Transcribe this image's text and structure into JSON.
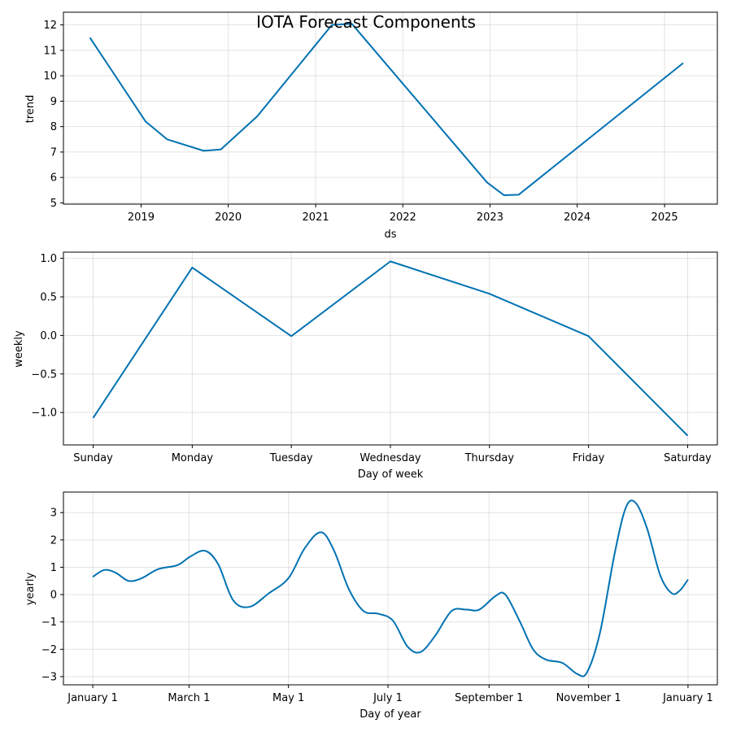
{
  "figure": {
    "title": "IOTA Forecast Components"
  },
  "colors": {
    "line": "#0072B2",
    "grid": "#b0b0b0",
    "frame": "#000000"
  },
  "chart_data": [
    {
      "id": "trend",
      "type": "line",
      "title": "",
      "xlabel": "ds",
      "ylabel": "trend",
      "x_scale": "date",
      "xlim": [
        "2018-02-10",
        "2025-08-10"
      ],
      "ylim": [
        4.95,
        12.5
      ],
      "xticks": [
        {
          "value": "2019-01-01",
          "label": "2019"
        },
        {
          "value": "2020-01-01",
          "label": "2020"
        },
        {
          "value": "2021-01-01",
          "label": "2021"
        },
        {
          "value": "2022-01-01",
          "label": "2022"
        },
        {
          "value": "2023-01-01",
          "label": "2023"
        },
        {
          "value": "2024-01-01",
          "label": "2024"
        },
        {
          "value": "2025-01-01",
          "label": "2025"
        }
      ],
      "yticks": [
        {
          "value": 5,
          "label": "5"
        },
        {
          "value": 6,
          "label": "6"
        },
        {
          "value": 7,
          "label": "7"
        },
        {
          "value": 8,
          "label": "8"
        },
        {
          "value": 9,
          "label": "9"
        },
        {
          "value": 10,
          "label": "10"
        },
        {
          "value": 11,
          "label": "11"
        },
        {
          "value": 12,
          "label": "12"
        }
      ],
      "grid": true,
      "series": [
        {
          "points": [
            {
              "x": "2018-06-01",
              "y": 11.5
            },
            {
              "x": "2019-01-20",
              "y": 8.2
            },
            {
              "x": "2019-04-20",
              "y": 7.5
            },
            {
              "x": "2019-09-20",
              "y": 7.05
            },
            {
              "x": "2019-12-01",
              "y": 7.1
            },
            {
              "x": "2020-05-01",
              "y": 8.4
            },
            {
              "x": "2021-03-10",
              "y": 12.0
            },
            {
              "x": "2021-06-01",
              "y": 12.05
            },
            {
              "x": "2022-12-20",
              "y": 5.8
            },
            {
              "x": "2023-03-01",
              "y": 5.3
            },
            {
              "x": "2023-05-01",
              "y": 5.32
            },
            {
              "x": "2025-03-20",
              "y": 10.5
            }
          ]
        }
      ]
    },
    {
      "id": "weekly",
      "type": "line",
      "title": "",
      "xlabel": "Day of week",
      "ylabel": "weekly",
      "x_scale": "category",
      "categories": [
        "Sunday",
        "Monday",
        "Tuesday",
        "Wednesday",
        "Thursday",
        "Friday",
        "Saturday"
      ],
      "xlim": [
        -0.3,
        6.3
      ],
      "ylim": [
        -1.42,
        1.08
      ],
      "yticks": [
        {
          "value": -1.0,
          "label": "−1.0"
        },
        {
          "value": -0.5,
          "label": "−0.5"
        },
        {
          "value": 0.0,
          "label": "0.0"
        },
        {
          "value": 0.5,
          "label": "0.5"
        },
        {
          "value": 1.0,
          "label": "1.0"
        }
      ],
      "grid": true,
      "series": [
        {
          "values": [
            -1.07,
            0.88,
            -0.01,
            0.96,
            0.54,
            -0.01,
            -1.3
          ]
        }
      ]
    },
    {
      "id": "yearly",
      "type": "line",
      "title": "",
      "xlabel": "Day of year",
      "ylabel": "yearly",
      "x_scale": "day_of_year",
      "xlim": [
        -18,
        383
      ],
      "ylim": [
        -3.3,
        3.75
      ],
      "xticks": [
        {
          "value": 0,
          "label": "January 1"
        },
        {
          "value": 59,
          "label": "March 1"
        },
        {
          "value": 120,
          "label": "May 1"
        },
        {
          "value": 181,
          "label": "July 1"
        },
        {
          "value": 243,
          "label": "September 1"
        },
        {
          "value": 304,
          "label": "November 1"
        },
        {
          "value": 365,
          "label": "January 1"
        }
      ],
      "yticks": [
        {
          "value": -3,
          "label": "−3"
        },
        {
          "value": -2,
          "label": "−2"
        },
        {
          "value": -1,
          "label": "−1"
        },
        {
          "value": 0,
          "label": "0"
        },
        {
          "value": 1,
          "label": "1"
        },
        {
          "value": 2,
          "label": "2"
        },
        {
          "value": 3,
          "label": "3"
        }
      ],
      "grid": true,
      "series": [
        {
          "points": [
            {
              "x": 0,
              "y": 0.65
            },
            {
              "x": 7,
              "y": 0.9
            },
            {
              "x": 14,
              "y": 0.8
            },
            {
              "x": 22,
              "y": 0.5
            },
            {
              "x": 30,
              "y": 0.6
            },
            {
              "x": 40,
              "y": 0.93
            },
            {
              "x": 52,
              "y": 1.08
            },
            {
              "x": 60,
              "y": 1.4
            },
            {
              "x": 69,
              "y": 1.6
            },
            {
              "x": 77,
              "y": 1.1
            },
            {
              "x": 86,
              "y": -0.2
            },
            {
              "x": 96,
              "y": -0.45
            },
            {
              "x": 108,
              "y": 0.05
            },
            {
              "x": 120,
              "y": 0.6
            },
            {
              "x": 130,
              "y": 1.7
            },
            {
              "x": 140,
              "y": 2.28
            },
            {
              "x": 148,
              "y": 1.6
            },
            {
              "x": 157,
              "y": 0.2
            },
            {
              "x": 166,
              "y": -0.6
            },
            {
              "x": 175,
              "y": -0.7
            },
            {
              "x": 184,
              "y": -0.95
            },
            {
              "x": 193,
              "y": -1.9
            },
            {
              "x": 201,
              "y": -2.1
            },
            {
              "x": 210,
              "y": -1.5
            },
            {
              "x": 220,
              "y": -0.6
            },
            {
              "x": 229,
              "y": -0.55
            },
            {
              "x": 237,
              "y": -0.55
            },
            {
              "x": 247,
              "y": -0.05
            },
            {
              "x": 253,
              "y": 0.0
            },
            {
              "x": 262,
              "y": -1.0
            },
            {
              "x": 270,
              "y": -2.0
            },
            {
              "x": 278,
              "y": -2.38
            },
            {
              "x": 288,
              "y": -2.5
            },
            {
              "x": 297,
              "y": -2.9
            },
            {
              "x": 303,
              "y": -2.85
            },
            {
              "x": 311,
              "y": -1.4
            },
            {
              "x": 320,
              "y": 1.5
            },
            {
              "x": 327,
              "y": 3.2
            },
            {
              "x": 333,
              "y": 3.35
            },
            {
              "x": 340,
              "y": 2.4
            },
            {
              "x": 348,
              "y": 0.7
            },
            {
              "x": 355,
              "y": 0.05
            },
            {
              "x": 360,
              "y": 0.15
            },
            {
              "x": 365,
              "y": 0.55
            }
          ]
        }
      ]
    }
  ]
}
